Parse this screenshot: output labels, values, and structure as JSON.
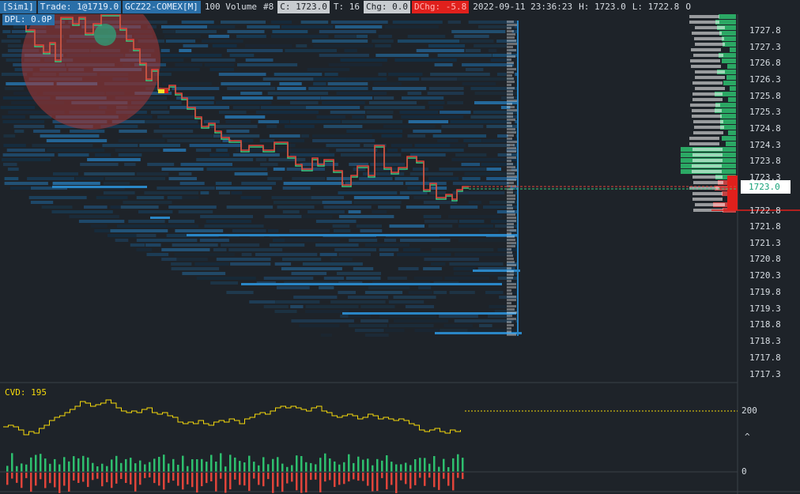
{
  "status_bar": {
    "account": "[Sim1]",
    "trade": "Trade: 1@1719.0",
    "instrument": "GCZ22-COMEX[M]",
    "chart_type": "100 Volume",
    "chart_number": "#8",
    "close": "C: 1723.0",
    "ticks": "T: 16",
    "change": "Chg: 0.0",
    "dchange": "DChg: -5.8",
    "datetime": "2022-09-11 23:36:23",
    "high": "H: 1723.0",
    "low": "L: 1722.8",
    "open_abbrev": "O"
  },
  "dpl": "DPL: 0.0P",
  "price_axis": {
    "labels": [
      "1727.8",
      "1727.3",
      "1726.8",
      "1726.3",
      "1725.8",
      "1725.3",
      "1724.8",
      "1724.3",
      "1723.8",
      "1723.3",
      "1722.8",
      "1721.8",
      "1721.3",
      "1720.8",
      "1720.3",
      "1719.8",
      "1719.3",
      "1718.8",
      "1718.3",
      "1717.8",
      "1717.3"
    ],
    "current_price": "1723.0",
    "red_line_price": "1722.8"
  },
  "cvd": {
    "label": "CVD: 195",
    "axis_label_200": "200",
    "axis_label_0": "0",
    "axis_caret": "^"
  },
  "colors": {
    "background": "#1e2329",
    "heatmap": "#1f6fa6",
    "price_up": "#3ac47d",
    "price_down": "#e0443a",
    "cvd_line": "#f5d90a",
    "red_level": "#e0201c",
    "bubble": "#b13a3a"
  }
}
